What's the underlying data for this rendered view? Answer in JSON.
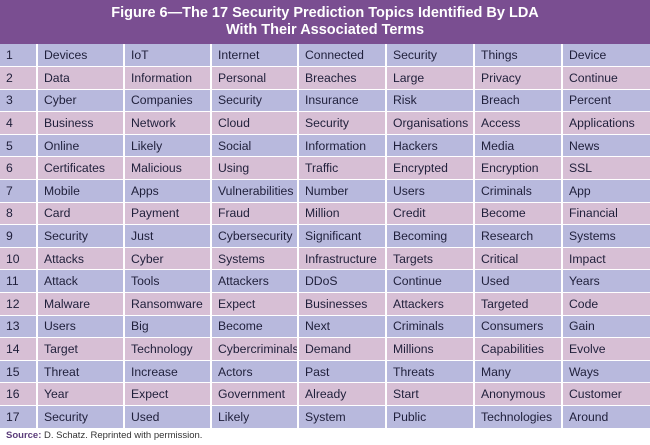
{
  "title": {
    "line1": "Figure 6—The 17 Security Prediction Topics Identified By LDA",
    "line2": "With Their Associated Terms"
  },
  "rows": [
    [
      "1",
      "Devices",
      "IoT",
      "Internet",
      "Connected",
      "Security",
      "Things",
      "Device"
    ],
    [
      "2",
      "Data",
      "Information",
      "Personal",
      "Breaches",
      "Large",
      "Privacy",
      "Continue"
    ],
    [
      "3",
      "Cyber",
      "Companies",
      "Security",
      "Insurance",
      "Risk",
      "Breach",
      "Percent"
    ],
    [
      "4",
      "Business",
      "Network",
      "Cloud",
      "Security",
      "Organisations",
      "Access",
      "Applications"
    ],
    [
      "5",
      "Online",
      "Likely",
      "Social",
      "Information",
      "Hackers",
      "Media",
      "News"
    ],
    [
      "6",
      "Certificates",
      "Malicious",
      "Using",
      "Traffic",
      "Encrypted",
      "Encryption",
      "SSL"
    ],
    [
      "7",
      "Mobile",
      "Apps",
      "Vulnerabilities",
      "Number",
      "Users",
      "Criminals",
      "App"
    ],
    [
      "8",
      "Card",
      "Payment",
      "Fraud",
      "Million",
      "Credit",
      "Become",
      "Financial"
    ],
    [
      "9",
      "Security",
      "Just",
      "Cybersecurity",
      "Significant",
      "Becoming",
      "Research",
      "Systems"
    ],
    [
      "10",
      "Attacks",
      "Cyber",
      "Systems",
      "Infrastructure",
      "Targets",
      "Critical",
      "Impact"
    ],
    [
      "11",
      "Attack",
      "Tools",
      "Attackers",
      "DDoS",
      "Continue",
      "Used",
      "Years"
    ],
    [
      "12",
      "Malware",
      "Ransomware",
      "Expect",
      "Businesses",
      "Attackers",
      "Targeted",
      "Code"
    ],
    [
      "13",
      "Users",
      "Big",
      "Become",
      "Next",
      "Criminals",
      "Consumers",
      "Gain"
    ],
    [
      "14",
      "Target",
      "Technology",
      "Cybercriminals",
      "Demand",
      "Millions",
      "Capabilities",
      "Evolve"
    ],
    [
      "15",
      "Threat",
      "Increase",
      "Actors",
      "Past",
      "Threats",
      "Many",
      "Ways"
    ],
    [
      "16",
      "Year",
      "Expect",
      "Government",
      "Already",
      "Start",
      "Anonymous",
      "Customer"
    ],
    [
      "17",
      "Security",
      "Used",
      "Likely",
      "System",
      "Public",
      "Technologies",
      "Around"
    ]
  ],
  "footer": {
    "label": "Source:",
    "text": " D. Schatz. Reprinted with permission."
  },
  "colors": {
    "header": "#7a4e91",
    "row_odd": "#b8b9dd",
    "row_even": "#d7bfd5"
  }
}
